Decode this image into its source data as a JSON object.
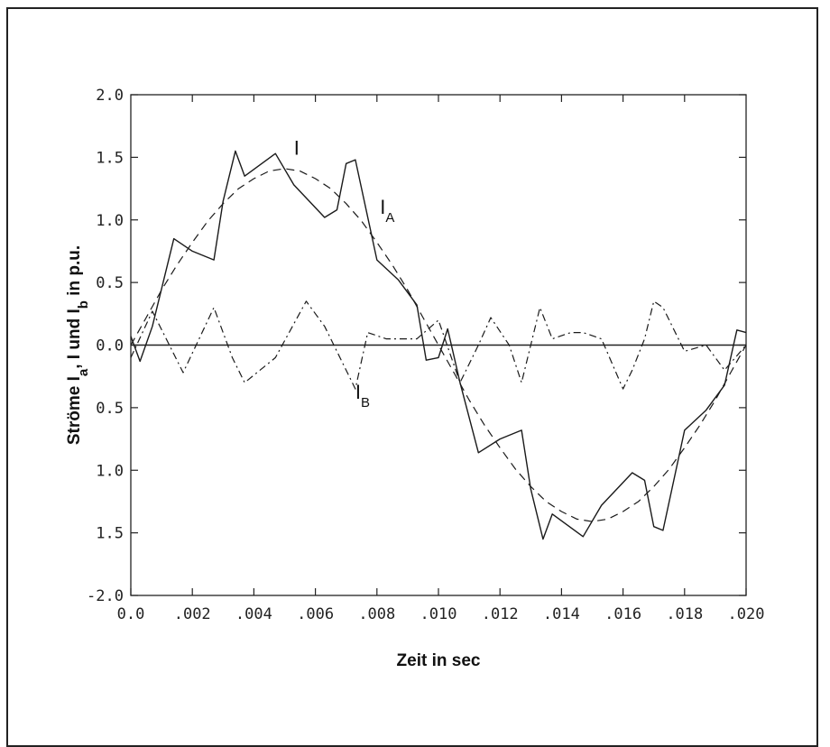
{
  "chart_data": {
    "type": "line",
    "xlabel": "Zeit in sec",
    "ylabel_parts": {
      "a": "Ströme I",
      "a_sub": "a",
      "b": ", I und I",
      "b_sub": "b",
      "c": " in p.u."
    },
    "xlim": [
      0.0,
      0.02
    ],
    "ylim": [
      -2.0,
      2.0
    ],
    "x_tick_labels": [
      "0.0",
      ".002",
      ".004",
      ".006",
      ".008",
      ".010",
      ".012",
      ".014",
      ".016",
      ".018",
      ".020"
    ],
    "y_tick_labels": [
      "2.0",
      "1.5",
      "1.0",
      "0.5",
      "0.0",
      "0.5",
      "1.0",
      "1.5",
      "-2.0"
    ],
    "y_tick_values": [
      2.0,
      1.5,
      1.0,
      0.5,
      0.0,
      -0.5,
      -1.0,
      -1.5,
      -2.0
    ],
    "grid": false,
    "annotations": [
      {
        "text": "I",
        "sub": "",
        "x": 0.0053,
        "y": 1.52
      },
      {
        "text": "I",
        "sub": "A",
        "x": 0.0081,
        "y": 1.05
      },
      {
        "text": "I",
        "sub": "B",
        "x": 0.0073,
        "y": -0.43
      }
    ],
    "series": [
      {
        "key": "I",
        "style": "solid",
        "x": [
          0.0,
          0.0003,
          0.0007,
          0.0014,
          0.002,
          0.0027,
          0.003,
          0.0034,
          0.0037,
          0.0047,
          0.0053,
          0.0063,
          0.0067,
          0.007,
          0.0073,
          0.008,
          0.0087,
          0.0093,
          0.0096,
          0.01,
          0.0103,
          0.0107,
          0.0113,
          0.012,
          0.0127,
          0.013,
          0.0134,
          0.0137,
          0.0147,
          0.0153,
          0.0163,
          0.0167,
          0.017,
          0.0173,
          0.018,
          0.0187,
          0.0193,
          0.0197,
          0.02
        ],
        "y": [
          0.07,
          -0.13,
          0.15,
          0.85,
          0.75,
          0.68,
          1.15,
          1.55,
          1.35,
          1.53,
          1.28,
          1.02,
          1.08,
          1.45,
          1.48,
          0.68,
          0.52,
          0.32,
          -0.12,
          -0.1,
          0.13,
          -0.3,
          -0.86,
          -0.75,
          -0.68,
          -1.15,
          -1.55,
          -1.35,
          -1.53,
          -1.28,
          -1.02,
          -1.08,
          -1.45,
          -1.48,
          -0.68,
          -0.52,
          -0.32,
          0.12,
          0.1
        ]
      },
      {
        "key": "I_A",
        "style": "dashed",
        "x": [
          0.0,
          0.0005,
          0.001,
          0.0015,
          0.002,
          0.0025,
          0.003,
          0.0035,
          0.004,
          0.0045,
          0.005,
          0.0055,
          0.006,
          0.0065,
          0.007,
          0.0075,
          0.008,
          0.0085,
          0.009,
          0.0095,
          0.01,
          0.0105,
          0.011,
          0.0115,
          0.012,
          0.0125,
          0.013,
          0.0135,
          0.014,
          0.0145,
          0.015,
          0.0155,
          0.016,
          0.0165,
          0.017,
          0.0175,
          0.018,
          0.0185,
          0.019,
          0.0195,
          0.02
        ],
        "y": [
          0.0,
          0.22,
          0.44,
          0.64,
          0.82,
          0.99,
          1.13,
          1.25,
          1.33,
          1.39,
          1.41,
          1.39,
          1.33,
          1.25,
          1.13,
          0.99,
          0.82,
          0.64,
          0.44,
          0.22,
          0.0,
          -0.22,
          -0.44,
          -0.64,
          -0.82,
          -0.99,
          -1.13,
          -1.25,
          -1.33,
          -1.39,
          -1.41,
          -1.39,
          -1.33,
          -1.25,
          -1.13,
          -0.99,
          -0.82,
          -0.64,
          -0.44,
          -0.22,
          0.0
        ]
      },
      {
        "key": "I_B",
        "style": "dashdot",
        "x": [
          0.0,
          0.0007,
          0.0017,
          0.0027,
          0.0033,
          0.0037,
          0.0047,
          0.0057,
          0.0063,
          0.0073,
          0.0077,
          0.0083,
          0.0087,
          0.0093,
          0.01,
          0.0107,
          0.0113,
          0.0117,
          0.0123,
          0.0127,
          0.0133,
          0.0137,
          0.0143,
          0.0147,
          0.0153,
          0.016,
          0.0163,
          0.0167,
          0.017,
          0.0173,
          0.018,
          0.0187,
          0.0193,
          0.02
        ],
        "y": [
          -0.1,
          0.27,
          -0.22,
          0.3,
          -0.1,
          -0.3,
          -0.1,
          0.35,
          0.15,
          -0.35,
          0.1,
          0.05,
          0.05,
          0.05,
          0.2,
          -0.3,
          0.0,
          0.22,
          0.0,
          -0.3,
          0.3,
          0.05,
          0.1,
          0.1,
          0.05,
          -0.35,
          -0.2,
          0.05,
          0.35,
          0.3,
          -0.05,
          0.0,
          -0.2,
          0.0
        ]
      }
    ]
  }
}
